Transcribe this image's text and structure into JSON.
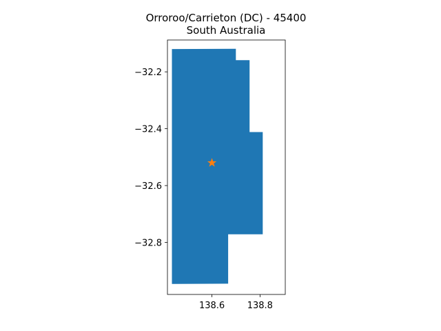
{
  "chart_data": {
    "type": "map",
    "title": "Orroroo/Carrieton (DC) - 45400",
    "subtitle": "South Australia",
    "xlabel": "",
    "ylabel": "",
    "xlim": [
      138.415,
      138.905
    ],
    "ylim": [
      -32.983,
      -32.088
    ],
    "xticks": [
      {
        "value": 138.6,
        "label": "138.6"
      },
      {
        "value": 138.8,
        "label": "138.8"
      }
    ],
    "yticks": [
      {
        "value": -32.2,
        "label": "−32.2"
      },
      {
        "value": -32.4,
        "label": "−32.4"
      },
      {
        "value": -32.6,
        "label": "−32.6"
      },
      {
        "value": -32.8,
        "label": "−32.8"
      }
    ],
    "region_color": "#1f77b4",
    "marker_color": "#ff7f0e",
    "marker_shape": "star",
    "region_polygon": [
      [
        138.435,
        -32.121
      ],
      [
        138.698,
        -32.12
      ],
      [
        138.698,
        -32.16
      ],
      [
        138.755,
        -32.16
      ],
      [
        138.755,
        -32.413
      ],
      [
        138.81,
        -32.413
      ],
      [
        138.81,
        -32.77
      ],
      [
        138.666,
        -32.77
      ],
      [
        138.666,
        -32.944
      ],
      [
        138.435,
        -32.945
      ]
    ],
    "marker": {
      "x": 138.6,
      "y": -32.52
    },
    "grid": false
  }
}
